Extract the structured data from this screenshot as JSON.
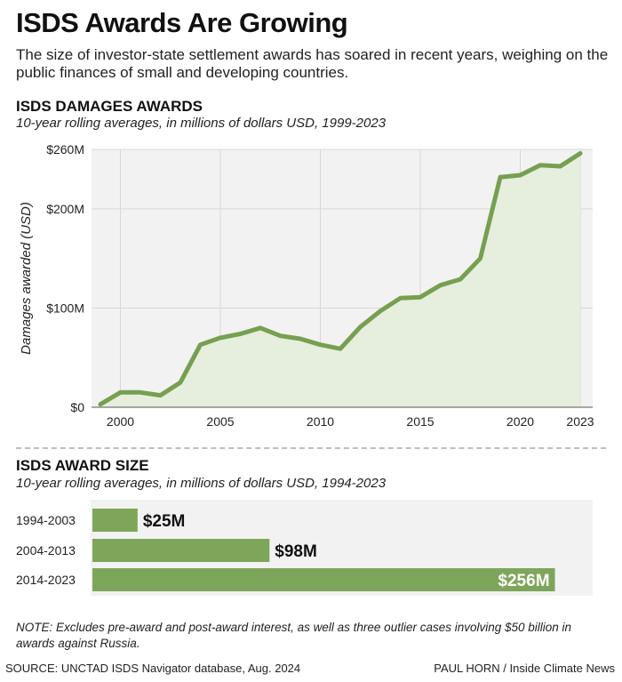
{
  "header": {
    "title": "ISDS Awards Are Growing",
    "subtitle": "The size of investor-state settlement awards has soared in recent years, weighing on the public finances of small and developing countries."
  },
  "colors": {
    "line": "#76a050",
    "area": "#e6eedd",
    "bar": "#7ea65a",
    "panel": "#f2f2f2",
    "grid": "#d8d8d8"
  },
  "chart_data": [
    {
      "type": "area",
      "title": "ISDS DAMAGES AWARDS",
      "subtitle": "10-year rolling averages, in millions of dollars USD, 1999-2023",
      "xlabel": "",
      "ylabel": "Damages awarded (USD)",
      "ylim": [
        0,
        260
      ],
      "xlim": [
        1999,
        2023
      ],
      "yticks": [
        0,
        100,
        200,
        260
      ],
      "ytick_labels": [
        "$0",
        "$100M",
        "$200M",
        "$260M"
      ],
      "xticks": [
        2000,
        2005,
        2010,
        2015,
        2020,
        2023
      ],
      "xtick_labels": [
        "2000",
        "2005",
        "2010",
        "2015",
        "2020",
        "2023"
      ],
      "grid": true,
      "x": [
        1999,
        2000,
        2001,
        2002,
        2003,
        2004,
        2005,
        2006,
        2007,
        2008,
        2009,
        2010,
        2011,
        2012,
        2013,
        2014,
        2015,
        2016,
        2017,
        2018,
        2019,
        2020,
        2021,
        2022,
        2023
      ],
      "values": [
        3,
        15,
        15,
        12,
        25,
        63,
        70,
        74,
        80,
        72,
        69,
        63,
        59,
        81,
        97,
        110,
        111,
        123,
        129,
        150,
        232,
        234,
        244,
        243,
        256
      ]
    },
    {
      "type": "bar",
      "title": "ISDS AWARD SIZE",
      "subtitle": "10-year rolling averages, in millions of dollars USD, 1994-2023",
      "orientation": "horizontal",
      "xlim": [
        0,
        270
      ],
      "categories": [
        "1994-2003",
        "2004-2013",
        "2014-2023"
      ],
      "values": [
        25,
        98,
        256
      ],
      "value_labels": [
        "$25M",
        "$98M",
        "$256M"
      ]
    }
  ],
  "footer": {
    "note": "NOTE: Excludes pre-award and post-award interest, as well as three outlier cases involving $50 billion in awards against Russia.",
    "source": "SOURCE: UNCTAD ISDS Navigator database, Aug. 2024",
    "credit": "PAUL HORN / Inside Climate News"
  }
}
